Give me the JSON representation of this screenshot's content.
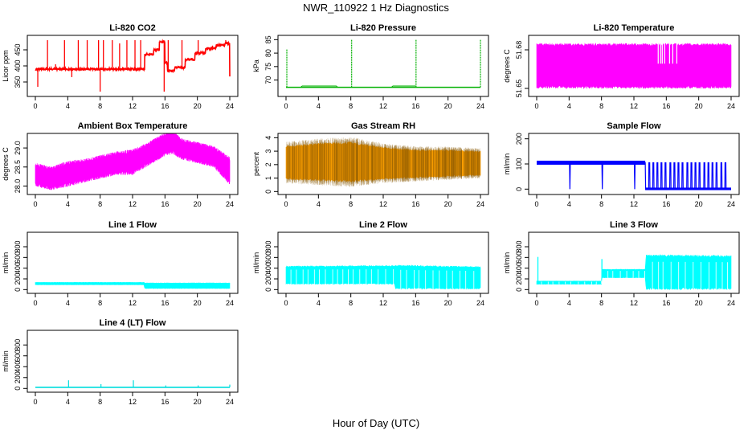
{
  "figure": {
    "title": "NWR_110922  1 Hz Diagnostics",
    "xlabel": "Hour of Day (UTC)"
  },
  "chart_data": [
    {
      "type": "line",
      "id": "co2",
      "title": "Li-820 CO2",
      "ylabel": "Licor ppm",
      "color": "#ff0000",
      "style": "step",
      "xlim": [
        0,
        24
      ],
      "ylim": [
        310,
        490
      ],
      "xticks": [
        0,
        4,
        8,
        12,
        16,
        20,
        24
      ],
      "yticks": [
        350,
        400,
        450
      ],
      "baseline": [
        [
          0,
          390
        ],
        [
          13.4,
          390
        ],
        [
          13.5,
          435
        ],
        [
          14.6,
          450
        ],
        [
          15.3,
          475
        ],
        [
          16.0,
          410
        ],
        [
          16.3,
          385
        ],
        [
          17.2,
          395
        ],
        [
          18.5,
          420
        ],
        [
          19.7,
          440
        ],
        [
          21.0,
          455
        ],
        [
          22.3,
          465
        ],
        [
          23.4,
          470
        ],
        [
          24,
          365
        ]
      ],
      "spikes": [
        [
          0.3,
          335
        ],
        [
          1.5,
          480
        ],
        [
          2.5,
          405
        ],
        [
          3.6,
          480
        ],
        [
          4.5,
          365
        ],
        [
          5.3,
          480
        ],
        [
          6.4,
          480
        ],
        [
          7.8,
          480
        ],
        [
          8.0,
          320
        ],
        [
          8.4,
          480
        ],
        [
          9.5,
          480
        ],
        [
          10.4,
          470
        ],
        [
          11.3,
          480
        ],
        [
          12.3,
          480
        ],
        [
          13.0,
          480
        ],
        [
          15.9,
          320
        ],
        [
          16.4,
          480
        ],
        [
          18.1,
          480
        ],
        [
          20.1,
          480
        ],
        [
          23.5,
          480
        ]
      ]
    },
    {
      "type": "line",
      "id": "pressure",
      "title": "Li-820 Pressure",
      "ylabel": "kPa",
      "color": "#00b000",
      "style": "line",
      "xlim": [
        0,
        24
      ],
      "ylim": [
        64.5,
        86
      ],
      "xticks": [
        0,
        4,
        8,
        12,
        16,
        20,
        24
      ],
      "yticks": [
        70,
        75,
        80,
        85
      ],
      "baseline": [
        [
          0,
          67.3
        ],
        [
          24,
          67.3
        ]
      ],
      "spikes": [
        [
          0.1,
          81.5
        ],
        [
          8.1,
          85
        ],
        [
          16.05,
          85
        ],
        [
          24.0,
          85
        ]
      ]
    },
    {
      "type": "area",
      "id": "li820temp",
      "title": "Li-820 Temperature",
      "ylabel": "degrees C",
      "color": "#ff00ff",
      "xlim": [
        0,
        24
      ],
      "ylim": [
        51.645,
        51.69
      ],
      "xticks": [
        0,
        4,
        8,
        12,
        16,
        20,
        24
      ],
      "yticks": [
        51.65,
        51.68
      ],
      "band": [
        [
          0,
          51.65,
          51.685
        ],
        [
          24,
          51.65,
          51.685
        ]
      ],
      "gaps": [
        15.0,
        15.3,
        15.5,
        15.8,
        16.4,
        16.8,
        17.3
      ]
    },
    {
      "type": "area",
      "id": "boxtemp",
      "title": "Ambient Box Temperature",
      "ylabel": "degrees C",
      "color": "#ff00ff",
      "xlim": [
        0,
        24
      ],
      "ylim": [
        27.82,
        29.34
      ],
      "xticks": [
        0,
        4,
        8,
        12,
        16,
        20,
        24
      ],
      "yticks": [
        28.0,
        28.5,
        29.0
      ],
      "band": [
        [
          0,
          28.05,
          28.55
        ],
        [
          2,
          27.95,
          28.45
        ],
        [
          4,
          28.05,
          28.6
        ],
        [
          6,
          28.15,
          28.65
        ],
        [
          8,
          28.25,
          28.75
        ],
        [
          10,
          28.35,
          28.85
        ],
        [
          12,
          28.35,
          28.9
        ],
        [
          14,
          28.6,
          29.1
        ],
        [
          16,
          28.85,
          29.35
        ],
        [
          17,
          28.9,
          29.4
        ],
        [
          18,
          28.75,
          29.2
        ],
        [
          20,
          28.65,
          29.1
        ],
        [
          22,
          28.55,
          29.0
        ],
        [
          24,
          28.1,
          28.7
        ]
      ]
    },
    {
      "type": "area",
      "id": "rh",
      "title": "Gas Stream RH",
      "ylabel": "percent",
      "color": "#ffa000",
      "xlim": [
        0,
        24
      ],
      "ylim": [
        -0.1,
        4.2
      ],
      "xticks": [
        0,
        4,
        8,
        12,
        16,
        20,
        24
      ],
      "yticks": [
        0,
        1,
        2,
        3,
        4
      ],
      "band": [
        [
          0,
          0.9,
          3.4
        ],
        [
          4,
          0.8,
          3.6
        ],
        [
          8,
          0.7,
          3.7
        ],
        [
          12,
          0.9,
          3.3
        ],
        [
          16,
          1.0,
          3.1
        ],
        [
          20,
          1.1,
          3.1
        ],
        [
          24,
          1.2,
          3.0
        ]
      ]
    },
    {
      "type": "line",
      "id": "sampleflow",
      "title": "Sample Flow",
      "ylabel": "ml/min",
      "color": "#0000ff",
      "style": "pulse",
      "xlim": [
        0,
        24
      ],
      "ylim": [
        -15,
        215
      ],
      "xticks": [
        0,
        4,
        8,
        12,
        16,
        20,
        24
      ],
      "yticks": [
        0,
        100,
        200
      ],
      "high": 105,
      "low": 0,
      "split": 13.4,
      "dips": [
        4.1,
        8.1,
        12.1
      ],
      "pulses": [
        13.9,
        14.4,
        14.9,
        15.4,
        15.9,
        16.5,
        17.0,
        17.5,
        18.0,
        18.6,
        19.1,
        19.6,
        20.1,
        20.7,
        21.2,
        21.7,
        22.2,
        22.8,
        23.3
      ]
    },
    {
      "type": "area",
      "id": "line1",
      "title": "Line 1 Flow",
      "ylabel": "ml/min",
      "color": "#00ffff",
      "xlim": [
        0,
        24
      ],
      "ylim": [
        -40,
        1040
      ],
      "xticks": [
        0,
        4,
        8,
        12,
        16,
        20,
        24
      ],
      "yticks": [
        0,
        200,
        400,
        600,
        800
      ],
      "band": [
        [
          0,
          90,
          135
        ],
        [
          13.4,
          90,
          135
        ],
        [
          13.5,
          20,
          125
        ],
        [
          24,
          20,
          125
        ]
      ]
    },
    {
      "type": "area",
      "id": "line2",
      "title": "Line 2 Flow",
      "ylabel": "ml/min",
      "color": "#00ffff",
      "xlim": [
        0,
        24
      ],
      "ylim": [
        -40,
        1040
      ],
      "xticks": [
        0,
        4,
        8,
        12,
        16,
        20,
        24
      ],
      "yticks": [
        0,
        200,
        400,
        600,
        800
      ],
      "band": [
        [
          0,
          100,
          440
        ],
        [
          13.4,
          100,
          450
        ],
        [
          13.5,
          10,
          460
        ],
        [
          24,
          10,
          430
        ]
      ]
    },
    {
      "type": "area",
      "id": "line3",
      "title": "Line 3 Flow",
      "ylabel": "ml/min",
      "color": "#00ffff",
      "xlim": [
        0,
        24
      ],
      "ylim": [
        -40,
        1040
      ],
      "xticks": [
        0,
        4,
        8,
        12,
        16,
        20,
        24
      ],
      "yticks": [
        0,
        200,
        400,
        600,
        800
      ],
      "band": [
        [
          0,
          100,
          160
        ],
        [
          8.0,
          100,
          160
        ],
        [
          8.05,
          220,
          380
        ],
        [
          13.4,
          220,
          380
        ],
        [
          13.5,
          0,
          650
        ],
        [
          24,
          0,
          640
        ]
      ],
      "spikes": [
        [
          0.15,
          610
        ],
        [
          8.05,
          570
        ]
      ]
    },
    {
      "type": "line",
      "id": "line4",
      "title": "Line 4 (LT) Flow",
      "ylabel": "ml/min",
      "color": "#00dddd",
      "style": "line",
      "xlim": [
        0,
        24
      ],
      "ylim": [
        -40,
        1040
      ],
      "xticks": [
        0,
        4,
        8,
        12,
        16,
        20,
        24
      ],
      "yticks": [
        0,
        200,
        400,
        600,
        800
      ],
      "baseline": [
        [
          0,
          20
        ],
        [
          24,
          20
        ]
      ],
      "spikes": [
        [
          4.1,
          150
        ],
        [
          8.1,
          80
        ],
        [
          12.1,
          150
        ],
        [
          16.1,
          55
        ],
        [
          20.1,
          55
        ],
        [
          24.0,
          70
        ]
      ]
    }
  ]
}
